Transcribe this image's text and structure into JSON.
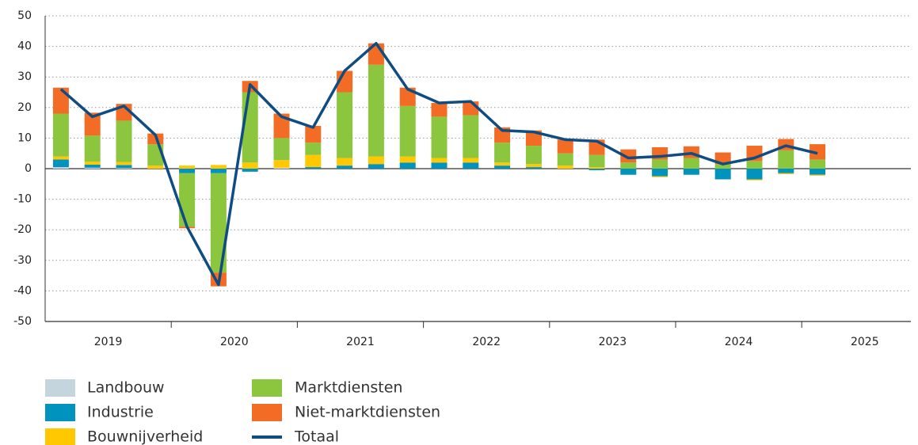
{
  "chart_data": {
    "type": "bar",
    "stacked": true,
    "groups": [
      "2019",
      "2020",
      "2021",
      "2022",
      "2023",
      "2024",
      "2025"
    ],
    "periods_per_group": 4,
    "ylim": [
      -50,
      50
    ],
    "yticks": [
      -50,
      -40,
      -30,
      -20,
      -10,
      0,
      10,
      20,
      30,
      40,
      50
    ],
    "grid": true,
    "legend": "bottom",
    "series": [
      {
        "name": "Landbouw",
        "type": "bar",
        "color": "#c5d5de",
        "values": [
          0.5,
          0.3,
          0.2,
          0,
          0,
          0,
          0,
          0.3,
          0,
          0,
          0,
          0,
          0,
          0,
          0,
          0,
          0,
          0,
          0,
          0,
          0,
          0,
          0,
          0,
          0,
          null,
          null,
          null
        ]
      },
      {
        "name": "Industrie",
        "type": "bar",
        "color": "#0093be",
        "values": [
          2.5,
          1,
          1,
          0,
          -1.5,
          -1.5,
          -1,
          0,
          0.5,
          1,
          1.5,
          2,
          2,
          2,
          1,
          0.5,
          0,
          -0.5,
          -2,
          -2.5,
          -2,
          -3.5,
          -3.5,
          -1.5,
          -2,
          null,
          null,
          null
        ]
      },
      {
        "name": "Bouwnijverheid",
        "type": "bar",
        "color": "#ffc800",
        "values": [
          1,
          1,
          1,
          1,
          1,
          1.2,
          2,
          2.5,
          4,
          2.5,
          2.5,
          2,
          1.5,
          1.5,
          1,
          1,
          1,
          0.5,
          0,
          -0.3,
          0,
          0,
          -0.3,
          -0.3,
          -0.3,
          null,
          null,
          null
        ]
      },
      {
        "name": "Marktdiensten",
        "type": "bar",
        "color": "#8cc63f",
        "values": [
          14,
          8.5,
          13.5,
          7,
          -17.5,
          -32.5,
          23,
          7.2,
          4,
          21.5,
          30,
          16.5,
          13.5,
          14,
          6.5,
          6,
          4,
          4,
          2,
          3,
          3.5,
          1.5,
          2.5,
          6,
          3,
          null,
          null,
          null
        ]
      },
      {
        "name": "Niet-marktdiensten",
        "type": "bar",
        "color": "#f26c25",
        "values": [
          8.5,
          7.5,
          5.5,
          3.5,
          -0.5,
          -4.5,
          3.7,
          8,
          5.5,
          7,
          7,
          6,
          4.5,
          4.5,
          5,
          5,
          4.5,
          5,
          4.3,
          4,
          3.8,
          3.8,
          5,
          3.7,
          5,
          null,
          null,
          null
        ]
      },
      {
        "name": "Totaal",
        "type": "line",
        "color": "#0f4c81",
        "values": [
          26,
          17,
          20.5,
          11,
          -19,
          -38,
          27.5,
          17,
          13.5,
          32,
          41,
          26,
          21.5,
          22,
          12.5,
          12,
          9.5,
          9,
          3.5,
          4,
          5,
          1.5,
          3.5,
          7.5,
          5,
          null,
          null,
          null
        ]
      }
    ]
  }
}
